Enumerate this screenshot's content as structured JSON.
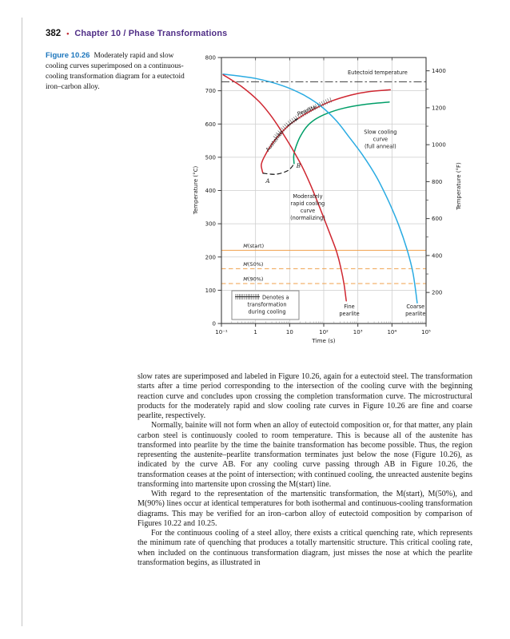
{
  "header": {
    "page_number": "382",
    "bullet": "•",
    "chapter": "Chapter 10  /  Phase Transformations"
  },
  "figure": {
    "label": "Figure 10.26",
    "caption": "Moderately rapid and slow cooling curves superimposed on a continuous-cooling transformation diagram for a eutectoid iron–carbon alloy."
  },
  "body": {
    "paragraphs": [
      "slow rates are superimposed and labeled in Figure 10.26, again for a eutectoid steel. The transformation starts after a time period corresponding to the intersection of the cooling curve with the beginning reaction curve and concludes upon crossing the completion transformation curve. The microstructural products for the moderately rapid and slow cooling rate curves in Figure 10.26 are fine and coarse pearlite, respectively.",
      "Normally, bainite will not form when an alloy of eutectoid composition or, for that matter, any plain carbon steel is continuously cooled to room temperature. This is because all of the austenite has transformed into pearlite by the time the bainite transformation has become possible. Thus, the region representing the austenite–pearlite transformation terminates just below the nose (Figure 10.26), as indicated by the curve AB. For any cooling curve passing through AB in Figure 10.26, the transformation ceases at the point of intersection; with continued cooling, the unreacted austenite begins transforming into martensite upon crossing the M(start) line.",
      "With regard to the representation of the martensitic transformation, the M(start), M(50%), and M(90%) lines occur at identical temperatures for both isothermal and continuous-cooling transformation diagrams. This may be verified for an iron–carbon alloy of eutectoid composition by comparison of Figures 10.22 and 10.25.",
      "For the continuous cooling of a steel alloy, there exists a critical quenching rate, which represents the minimum rate of quenching that produces a totally martensitic structure. This critical cooling rate, when included on the continuous transformation diagram, just misses the nose at which the pearlite transformation begins, as illustrated in"
    ]
  },
  "chart_data": {
    "type": "line",
    "xlabel": "Time (s)",
    "ylabel_left": "Temperature (°C)",
    "ylabel_right": "Temperature (°F)",
    "x_scale": "log",
    "x_log_range": [
      -1,
      5
    ],
    "ylim_c": [
      0,
      800
    ],
    "x_ticks": [
      {
        "log": -1,
        "label": "10⁻¹"
      },
      {
        "log": 0,
        "label": "1"
      },
      {
        "log": 1,
        "label": "10"
      },
      {
        "log": 2,
        "label": "10²"
      },
      {
        "log": 3,
        "label": "10³"
      },
      {
        "log": 4,
        "label": "10⁴"
      },
      {
        "log": 5,
        "label": "10⁵"
      }
    ],
    "y_ticks_c": [
      0,
      100,
      200,
      300,
      400,
      500,
      600,
      700,
      800
    ],
    "y_ticks_f": [
      200,
      400,
      600,
      800,
      1000,
      1200,
      1400
    ],
    "colors": {
      "red": "#cf2630",
      "green": "#009e68",
      "cyan": "#2aabe2",
      "martensite": "#f0a14b",
      "grid": "#cecece",
      "frame": "#3c3c3c"
    },
    "eutectoid": {
      "label": "Eutectoid temperature",
      "temp_c": 727
    },
    "m_lines": [
      {
        "label": "M(start)",
        "temp_c": 220,
        "style": "solid"
      },
      {
        "label": "M(50%)",
        "temp_c": 165,
        "style": "dashed"
      },
      {
        "label": "M(90%)",
        "temp_c": 120,
        "style": "dashed"
      }
    ],
    "series": [
      {
        "name": "pearlite-start-curve",
        "color": "#cf2630",
        "points": [
          [
            3.95,
            703
          ],
          [
            3.3,
            697
          ],
          [
            2.8,
            687
          ],
          [
            2.2,
            668
          ],
          [
            1.7,
            644
          ],
          [
            1.3,
            620
          ],
          [
            1.0,
            598
          ],
          [
            0.72,
            570
          ],
          [
            0.45,
            535
          ],
          [
            0.25,
            500
          ],
          [
            0.17,
            478
          ],
          [
            0.19,
            462
          ],
          [
            0.22,
            452
          ]
        ]
      },
      {
        "name": "pearlite-completion-curve",
        "color": "#009e68",
        "points": [
          [
            3.92,
            666
          ],
          [
            3.2,
            659
          ],
          [
            2.6,
            648
          ],
          [
            2.1,
            632
          ],
          [
            1.75,
            614
          ],
          [
            1.5,
            592
          ],
          [
            1.3,
            560
          ],
          [
            1.18,
            530
          ],
          [
            1.12,
            505
          ],
          [
            1.13,
            481
          ]
        ]
      },
      {
        "name": "curve-ab-dashed",
        "color": "#1a1a1a",
        "dash": "5 4",
        "width": 1.2,
        "points": [
          [
            0.22,
            452
          ],
          [
            0.6,
            449
          ],
          [
            0.95,
            460
          ],
          [
            1.13,
            480
          ]
        ]
      },
      {
        "name": "slow-cooling-curve",
        "color": "#2aabe2",
        "points": [
          [
            -0.95,
            750
          ],
          [
            0.0,
            737
          ],
          [
            0.8,
            715
          ],
          [
            1.4,
            688
          ],
          [
            1.9,
            655
          ],
          [
            2.35,
            612
          ],
          [
            2.75,
            560
          ],
          [
            3.15,
            505
          ],
          [
            3.55,
            440
          ],
          [
            3.9,
            368
          ],
          [
            4.2,
            295
          ],
          [
            4.45,
            220
          ],
          [
            4.62,
            150
          ],
          [
            4.74,
            62
          ]
        ]
      },
      {
        "name": "moderately-rapid-cooling-curve",
        "color": "#cf2630",
        "points": [
          [
            -0.95,
            748
          ],
          [
            -0.4,
            712
          ],
          [
            0.1,
            668
          ],
          [
            0.45,
            625
          ],
          [
            0.75,
            580
          ],
          [
            1.05,
            530
          ],
          [
            1.35,
            475
          ],
          [
            1.6,
            420
          ],
          [
            1.8,
            370
          ],
          [
            2.0,
            318
          ],
          [
            2.2,
            265
          ],
          [
            2.38,
            215
          ],
          [
            2.5,
            168
          ],
          [
            2.6,
            115
          ],
          [
            2.66,
            68
          ]
        ]
      }
    ],
    "hatch": {
      "along": "pearlite-start-curve",
      "temp_range": [
        552,
        670
      ]
    },
    "arrow": {
      "from": [
        0.93,
        594
      ],
      "to": [
        1.24,
        617
      ]
    },
    "annotations": [
      {
        "name": "eutectoid-temperature-label",
        "lines": [
          "Eutectoid temperature"
        ],
        "log": 3.58,
        "temp": 750,
        "size": 6.6
      },
      {
        "name": "austenite-region-label",
        "lines": [
          "Austenite"
        ],
        "log": 0.6,
        "temp": 546,
        "rotate": -52,
        "size": 6.6
      },
      {
        "name": "pearlite-region-label",
        "lines": [
          "Pearlite"
        ],
        "log": 1.52,
        "temp": 636,
        "rotate": -22,
        "size": 6.6
      },
      {
        "name": "slow-cooling-curve-label",
        "lines": [
          "Slow cooling",
          "curve",
          "(full anneal)"
        ],
        "log": 3.66,
        "temp": 570,
        "size": 6.6
      },
      {
        "name": "moderately-rapid-cooling-label",
        "lines": [
          "Moderately",
          "rapid cooling",
          "curve",
          "(normalizing)"
        ],
        "log": 1.53,
        "temp": 377,
        "size": 6.6
      },
      {
        "name": "point-a-label",
        "lines": [
          "A"
        ],
        "log": 0.36,
        "temp": 423,
        "italic": true,
        "serif": true,
        "size": 7.2
      },
      {
        "name": "point-b-label",
        "lines": [
          "B"
        ],
        "log": 1.26,
        "temp": 468,
        "italic": true,
        "serif": true,
        "size": 7.2
      },
      {
        "name": "fine-pearlite-label",
        "lines": [
          "Fine",
          "pearlite"
        ],
        "log": 2.75,
        "temp": 46,
        "size": 6.6
      },
      {
        "name": "coarse-pearlite-label",
        "lines": [
          "Coarse",
          "pearlite"
        ],
        "log": 4.69,
        "temp": 46,
        "size": 6.6
      }
    ],
    "legend": {
      "symbol": "hatch",
      "lines": [
        "Denotes a",
        "transformation",
        "during cooling"
      ]
    }
  }
}
